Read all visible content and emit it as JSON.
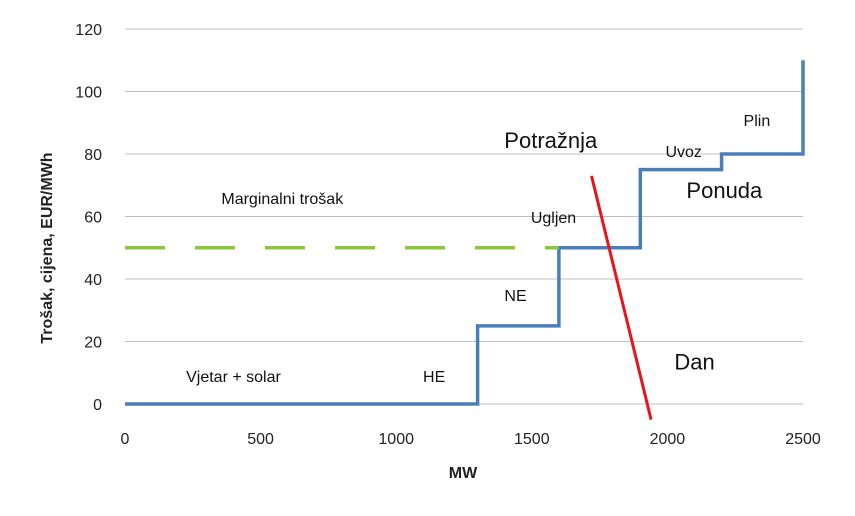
{
  "chart_data": {
    "type": "line",
    "xlabel": "MW",
    "ylabel": "Trošak, cijena, EUR/MWh",
    "xlim": [
      0,
      2500
    ],
    "ylim": [
      0,
      120
    ],
    "x_ticks": [
      "0",
      "500",
      "1000",
      "1500",
      "2000",
      "2500"
    ],
    "y_ticks": [
      "0",
      "20",
      "40",
      "60",
      "80",
      "100",
      "120"
    ],
    "grid": "horizontal",
    "series": [
      {
        "name": "Ponuda",
        "color": "#4a7ebb",
        "style": "step",
        "x": [
          0,
          1300,
          1300,
          1600,
          1600,
          1900,
          1900,
          2200,
          2200,
          2500,
          2500
        ],
        "y": [
          0,
          0,
          25,
          25,
          50,
          50,
          75,
          75,
          80,
          80,
          110
        ]
      },
      {
        "name": "Potražnja",
        "color": "#e8141b",
        "style": "line",
        "x": [
          1720,
          1940
        ],
        "y": [
          73,
          -5
        ]
      },
      {
        "name": "Marginalni trošak",
        "color": "#8cc63f",
        "style": "dashed",
        "x": [
          0,
          1600
        ],
        "y": [
          50,
          50
        ]
      }
    ],
    "annotations": [
      {
        "text": "Vjetar + solar",
        "x": 400,
        "y": 7,
        "size": 16
      },
      {
        "text": "HE",
        "x": 1140,
        "y": 7,
        "size": 16
      },
      {
        "text": "NE",
        "x": 1440,
        "y": 33,
        "size": 16
      },
      {
        "text": "Ugljen",
        "x": 1580,
        "y": 58,
        "size": 16
      },
      {
        "text": "Marginalni trošak",
        "x": 580,
        "y": 64,
        "size": 16
      },
      {
        "text": "Potražnja",
        "x": 1570,
        "y": 82,
        "size": 22
      },
      {
        "text": "Uvoz",
        "x": 2060,
        "y": 79,
        "size": 16
      },
      {
        "text": "Plin",
        "x": 2330,
        "y": 89,
        "size": 16
      },
      {
        "text": "Ponuda",
        "x": 2210,
        "y": 66,
        "size": 22
      },
      {
        "text": "Dan",
        "x": 2100,
        "y": 11,
        "size": 22
      }
    ]
  }
}
